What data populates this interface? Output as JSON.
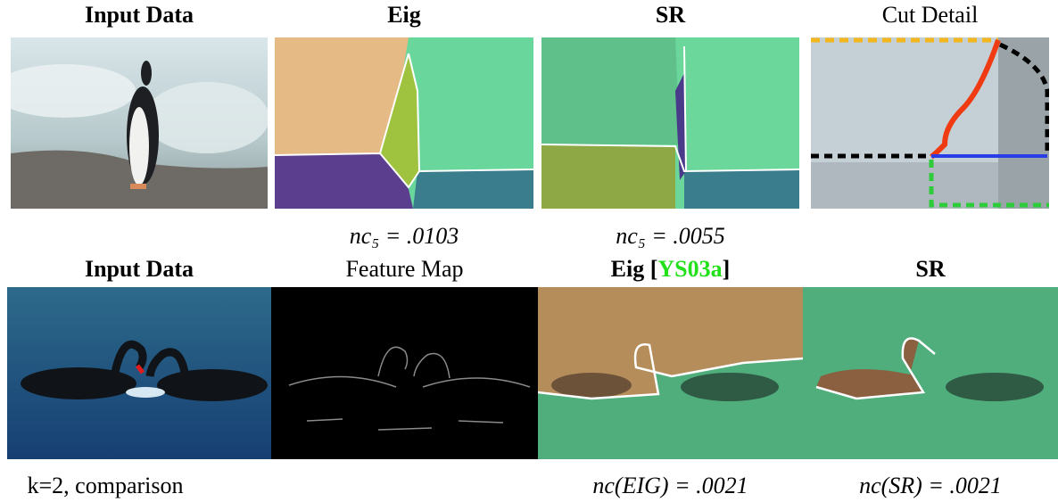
{
  "top_row": {
    "panels": [
      {
        "title": "Input Data"
      },
      {
        "title": "Eig",
        "caption": "nc₅ = .0103"
      },
      {
        "title": "SR",
        "caption": "nc₅ = .0055"
      },
      {
        "title": "Cut Detail"
      }
    ]
  },
  "bottom_row": {
    "panels": [
      {
        "title": "Input Data",
        "caption": "k=2, comparison"
      },
      {
        "title": "Feature Map"
      },
      {
        "title_parts": [
          "Eig [",
          "YS03a",
          "]"
        ],
        "caption": "nc(EIG) = .0021"
      },
      {
        "title": "SR",
        "caption": "nc(SR) = .0021"
      }
    ]
  }
}
